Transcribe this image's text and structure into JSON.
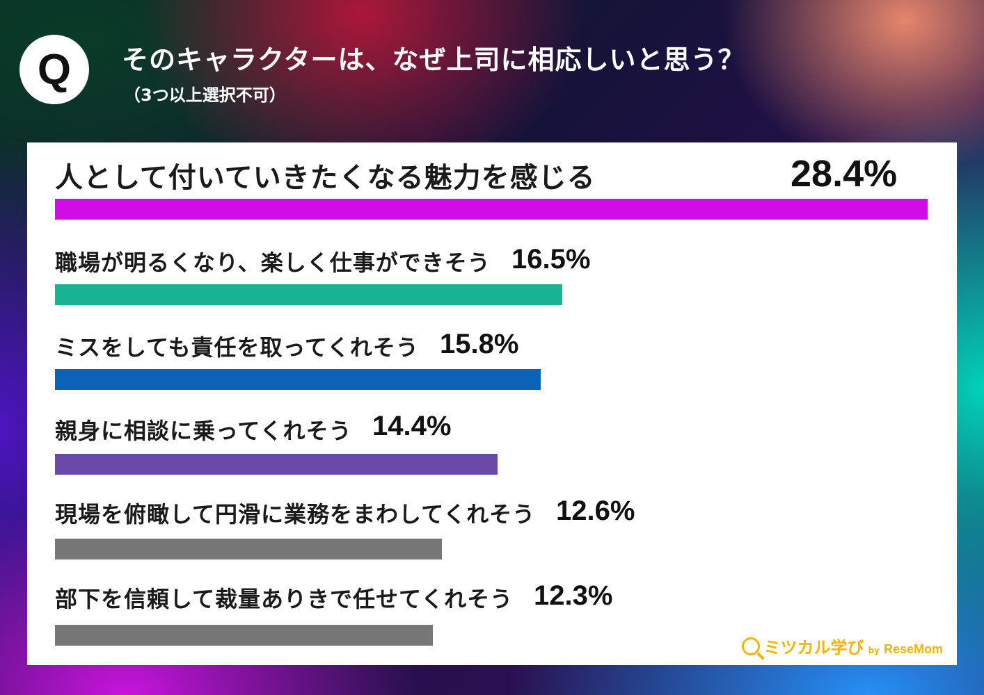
{
  "header": {
    "q_badge": "Q",
    "title": "そのキャラクターは、なぜ上司に相応しいと思う？",
    "subtitle": "（3つ以上選択不可）"
  },
  "logo": {
    "name": "ミツカル学び",
    "by": "by",
    "brand": "ReseMom",
    "icon": "magnifier-icon"
  },
  "chart_data": {
    "type": "bar",
    "orientation": "horizontal",
    "unit": "%",
    "xlim": [
      0,
      28.4
    ],
    "categories": [
      "人として付いていきたくなる魅力を感じる",
      "職場が明るくなり、楽しく仕事ができそう",
      "ミスをしても責任を取ってくれそう",
      "親身に相談に乗ってくれそう",
      "現場を俯瞰して円滑に業務をまわしてくれそう",
      "部下を信頼して裁量ありきで任せてくれそう"
    ],
    "values": [
      28.4,
      16.5,
      15.8,
      14.4,
      12.6,
      12.3
    ],
    "value_labels": [
      "28.4%",
      "16.5%",
      "15.8%",
      "14.4%",
      "12.6%",
      "12.3%"
    ],
    "colors": [
      "#d10ce6",
      "#17b594",
      "#0a63b8",
      "#6a49a8",
      "#777777",
      "#777777"
    ]
  }
}
